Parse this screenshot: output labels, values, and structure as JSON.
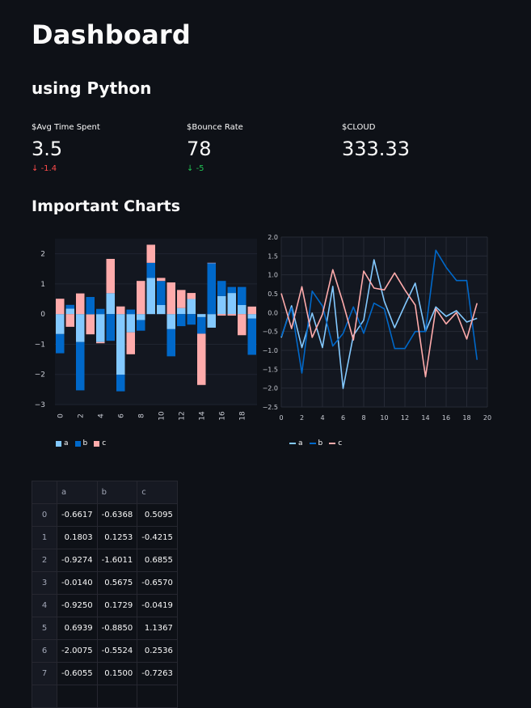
{
  "header": {
    "title": "Dashboard",
    "subtitle": "using Python",
    "section": "Important Charts"
  },
  "metrics": [
    {
      "label": "$Avg Time Spent",
      "value": "3.5",
      "delta": "-1.4",
      "delta_color": "#ff4b4b"
    },
    {
      "label": "$Bounce Rate",
      "value": "78",
      "delta": "-5",
      "delta_color": "#21c354"
    },
    {
      "label": "$CLOUD",
      "value": "333.33"
    }
  ],
  "colors": {
    "a": "#83c9ff",
    "b": "#0068c9",
    "c": "#ffabab",
    "bg": "#0e1117",
    "grid": "#2a2d36"
  },
  "chart_data": [
    {
      "type": "bar",
      "stacked": true,
      "x": [
        0,
        1,
        2,
        3,
        4,
        5,
        6,
        7,
        8,
        9,
        10,
        11,
        12,
        13,
        14,
        15,
        16,
        17,
        18,
        19
      ],
      "ylim": [
        -3,
        2.5
      ],
      "yticks": [
        "2",
        "1",
        "0",
        "−1",
        "−2",
        "−3"
      ],
      "xticks": [
        "0",
        "2",
        "4",
        "6",
        "8",
        "10",
        "12",
        "14",
        "16",
        "18"
      ],
      "legend": {
        "position": "bottom-left",
        "labels": [
          "a",
          "b",
          "c"
        ]
      },
      "series": [
        {
          "name": "a",
          "values": [
            -0.6617,
            0.1803,
            -0.9274,
            -0.014,
            -0.925,
            0.6939,
            -2.0075,
            -0.6055,
            -0.2,
            1.2,
            0.3,
            -0.5,
            0.2,
            0.5,
            -0.1,
            -0.45,
            0.6,
            0.7,
            0.3,
            -0.15
          ]
        },
        {
          "name": "b",
          "values": [
            -0.6368,
            0.1253,
            -1.6011,
            0.5675,
            0.1729,
            -0.885,
            -0.5524,
            0.15,
            -0.35,
            0.5,
            0.8,
            -0.9,
            -0.4,
            -0.35,
            -0.55,
            1.7,
            0.5,
            0.2,
            0.6,
            -1.2
          ]
        },
        {
          "name": "c",
          "values": [
            0.5095,
            -0.4215,
            0.6855,
            -0.657,
            -0.0419,
            1.1367,
            0.2536,
            -0.7263,
            1.1,
            0.6,
            0.1,
            1.05,
            0.6,
            0.2,
            -1.7,
            0.0,
            -0.05,
            -0.05,
            -0.7,
            0.25
          ]
        }
      ]
    },
    {
      "type": "line",
      "x": [
        0,
        1,
        2,
        3,
        4,
        5,
        6,
        7,
        8,
        9,
        10,
        11,
        12,
        13,
        14,
        15,
        16,
        17,
        18,
        19
      ],
      "xlim": [
        0,
        20
      ],
      "ylim": [
        -2.5,
        2.0
      ],
      "yticks": [
        "2.0",
        "1.5",
        "1.0",
        "0.5",
        "0.0",
        "−0.5",
        "−1.0",
        "−1.5",
        "−2.0",
        "−2.5"
      ],
      "xticks": [
        "0",
        "2",
        "4",
        "6",
        "8",
        "10",
        "12",
        "14",
        "16",
        "18",
        "20"
      ],
      "legend": {
        "position": "bottom-left",
        "labels": [
          "a",
          "b",
          "c"
        ]
      },
      "series": [
        {
          "name": "a",
          "values": [
            -0.6617,
            0.1803,
            -0.9274,
            -0.014,
            -0.925,
            0.6939,
            -2.0075,
            -0.6055,
            -0.2,
            1.4,
            0.3,
            -0.4,
            0.2,
            0.78,
            -0.5,
            0.15,
            -0.1,
            0.05,
            -0.25,
            -0.15
          ]
        },
        {
          "name": "b",
          "values": [
            -0.6368,
            0.1253,
            -1.6011,
            0.5675,
            0.1729,
            -0.885,
            -0.5524,
            0.15,
            -0.55,
            0.25,
            0.1,
            -0.95,
            -0.95,
            -0.5,
            -0.5,
            1.65,
            1.2,
            0.85,
            0.85,
            -1.25
          ]
        },
        {
          "name": "c",
          "values": [
            0.5095,
            -0.4215,
            0.6855,
            -0.657,
            -0.0419,
            1.1367,
            0.2536,
            -0.7263,
            1.1,
            0.65,
            0.6,
            1.05,
            0.6,
            0.2,
            -1.7,
            0.1,
            -0.3,
            0.0,
            -0.7,
            0.25
          ]
        }
      ]
    }
  ],
  "table": {
    "columns": [
      "",
      "a",
      "b",
      "c"
    ],
    "rows": [
      [
        "0",
        "-0.6617",
        "-0.6368",
        "0.5095"
      ],
      [
        "1",
        "0.1803",
        "0.1253",
        "-0.4215"
      ],
      [
        "2",
        "-0.9274",
        "-1.6011",
        "0.6855"
      ],
      [
        "3",
        "-0.0140",
        "0.5675",
        "-0.6570"
      ],
      [
        "4",
        "-0.9250",
        "0.1729",
        "-0.0419"
      ],
      [
        "5",
        "0.6939",
        "-0.8850",
        "1.1367"
      ],
      [
        "6",
        "-2.0075",
        "-0.5524",
        "0.2536"
      ],
      [
        "7",
        "-0.6055",
        "0.1500",
        "-0.7263"
      ],
      [
        "",
        "",
        "",
        ""
      ]
    ]
  }
}
